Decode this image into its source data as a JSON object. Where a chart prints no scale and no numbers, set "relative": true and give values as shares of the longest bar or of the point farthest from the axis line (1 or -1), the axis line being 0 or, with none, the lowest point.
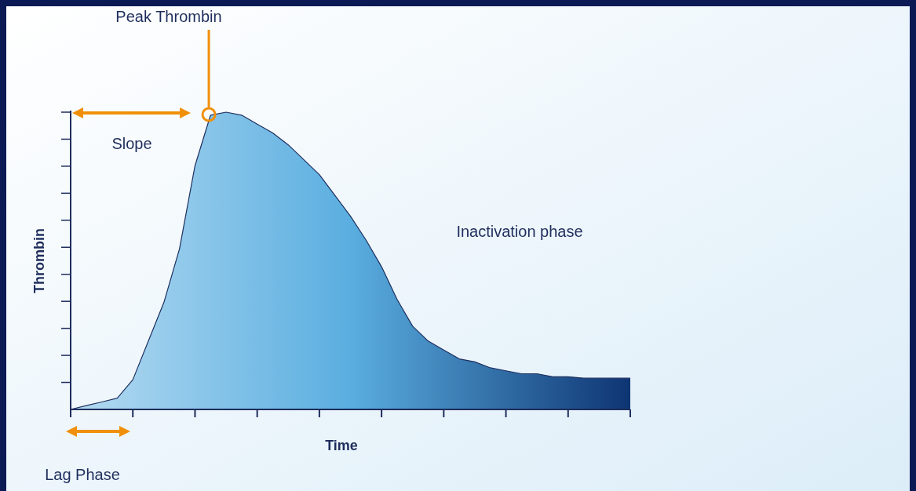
{
  "chart_data": {
    "type": "area",
    "relative": true,
    "xlabel": "Time",
    "ylabel": "Thrombin",
    "annotations": [
      "Peak Thrombin",
      "Slope",
      "Inactivation phase",
      "Lag Phase"
    ],
    "categories": [
      null,
      null,
      null,
      null,
      null,
      null,
      null,
      null,
      null,
      null,
      null,
      null,
      null,
      null,
      null,
      null,
      null,
      null,
      null,
      null,
      null,
      null,
      null,
      null,
      null,
      null,
      null,
      null,
      null,
      null,
      null,
      null,
      null,
      null,
      null,
      null,
      null
    ],
    "series": [
      {
        "color": "#5aaee0",
        "values": [
          0,
          0.013,
          0.025,
          0.038,
          0.1,
          0.23,
          0.36,
          0.54,
          0.82,
          0.99,
          1,
          0.99,
          0.96,
          0.93,
          0.89,
          0.84,
          0.79,
          0.72,
          0.65,
          0.57,
          0.48,
          0.37,
          0.28,
          0.23,
          0.2,
          0.17,
          0.16,
          0.14,
          0.13,
          0.12,
          0.12,
          0.11,
          0.11,
          0.105,
          0.105,
          0.105,
          0.105
        ]
      }
    ]
  }
}
